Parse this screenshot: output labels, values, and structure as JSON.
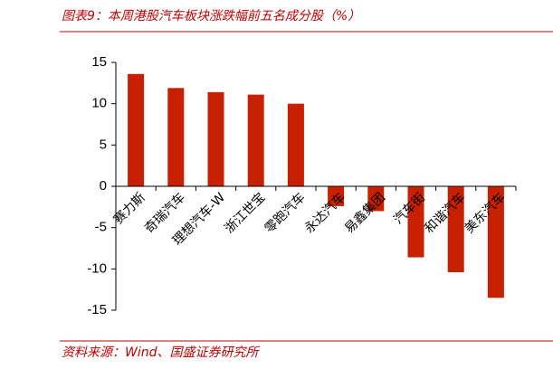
{
  "chart_data": {
    "type": "bar",
    "title": "图表9：本周港股汽车板块涨跌幅前五名成分股（%）",
    "source": "资料来源：Wind、国盛证券研究所",
    "categories": [
      "赛力斯",
      "奇瑞汽车",
      "理想汽车-W",
      "浙江世宝",
      "零跑汽车",
      "永达汽车",
      "易鑫集团",
      "汽车街",
      "和谐汽车",
      "美东汽车"
    ],
    "values": [
      13.6,
      11.9,
      11.4,
      11.1,
      10.0,
      -2.4,
      -3.0,
      -8.6,
      -10.4,
      -13.5
    ],
    "color": "#c82000",
    "ylim": [
      -15,
      15
    ],
    "yticks": [
      -15,
      -10,
      -5,
      0,
      5,
      10,
      15
    ],
    "grid": false
  }
}
